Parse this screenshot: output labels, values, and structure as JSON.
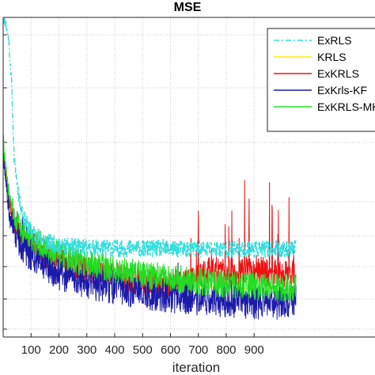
{
  "chart_data": {
    "type": "line",
    "title": "MSE",
    "xlabel": "iteration",
    "ylabel": "",
    "xlim": [
      0,
      1000
    ],
    "ylim": [
      0,
      1
    ],
    "x_ticks": [
      100,
      200,
      300,
      400,
      500,
      600,
      700,
      800,
      900
    ],
    "grid": true,
    "legend_position": "top-right",
    "series": [
      {
        "name": "ExRLS",
        "color": "#33dddd",
        "style": "dash-dot",
        "x": [
          0,
          10,
          20,
          30,
          40,
          60,
          80,
          100,
          150,
          200,
          300,
          400,
          500,
          600,
          700,
          800,
          900,
          1000
        ],
        "y": [
          1.0,
          0.98,
          0.93,
          0.8,
          0.55,
          0.42,
          0.36,
          0.33,
          0.3,
          0.285,
          0.28,
          0.278,
          0.277,
          0.276,
          0.275,
          0.275,
          0.275,
          0.275
        ]
      },
      {
        "name": "KRLS",
        "color": "#ffee00",
        "style": "solid",
        "x": [
          0,
          10,
          20,
          30,
          50,
          75,
          100,
          150,
          200,
          300,
          400,
          500,
          600,
          700,
          800,
          900,
          1000
        ],
        "y": [
          0.6,
          0.5,
          0.43,
          0.39,
          0.34,
          0.31,
          0.29,
          0.26,
          0.24,
          0.21,
          0.19,
          0.175,
          0.165,
          0.16,
          0.155,
          0.15,
          0.148
        ]
      },
      {
        "name": "ExKRLS",
        "color": "#ee1111",
        "style": "solid",
        "x": [
          0,
          10,
          20,
          30,
          50,
          75,
          100,
          150,
          200,
          300,
          400,
          500,
          600,
          650,
          700,
          750,
          800,
          850,
          900,
          950,
          1000
        ],
        "y": [
          0.6,
          0.5,
          0.43,
          0.39,
          0.34,
          0.31,
          0.29,
          0.26,
          0.24,
          0.21,
          0.19,
          0.175,
          0.165,
          0.17,
          0.19,
          0.21,
          0.2,
          0.2,
          0.22,
          0.2,
          0.2
        ]
      },
      {
        "name": "ExKrls-KF",
        "color": "#1a1aaa",
        "style": "solid",
        "x": [
          0,
          10,
          20,
          30,
          50,
          75,
          100,
          150,
          200,
          300,
          400,
          500,
          600,
          700,
          800,
          900,
          1000
        ],
        "y": [
          0.57,
          0.47,
          0.4,
          0.36,
          0.31,
          0.28,
          0.26,
          0.23,
          0.2,
          0.17,
          0.155,
          0.14,
          0.13,
          0.12,
          0.115,
          0.11,
          0.108
        ]
      },
      {
        "name": "ExKRLS-MK",
        "color": "#22dd22",
        "style": "solid",
        "x": [
          0,
          10,
          20,
          30,
          50,
          75,
          100,
          150,
          200,
          300,
          400,
          500,
          600,
          700,
          800,
          900,
          1000
        ],
        "y": [
          0.62,
          0.52,
          0.45,
          0.41,
          0.36,
          0.33,
          0.31,
          0.28,
          0.26,
          0.23,
          0.21,
          0.195,
          0.185,
          0.175,
          0.165,
          0.16,
          0.155
        ]
      }
    ]
  }
}
